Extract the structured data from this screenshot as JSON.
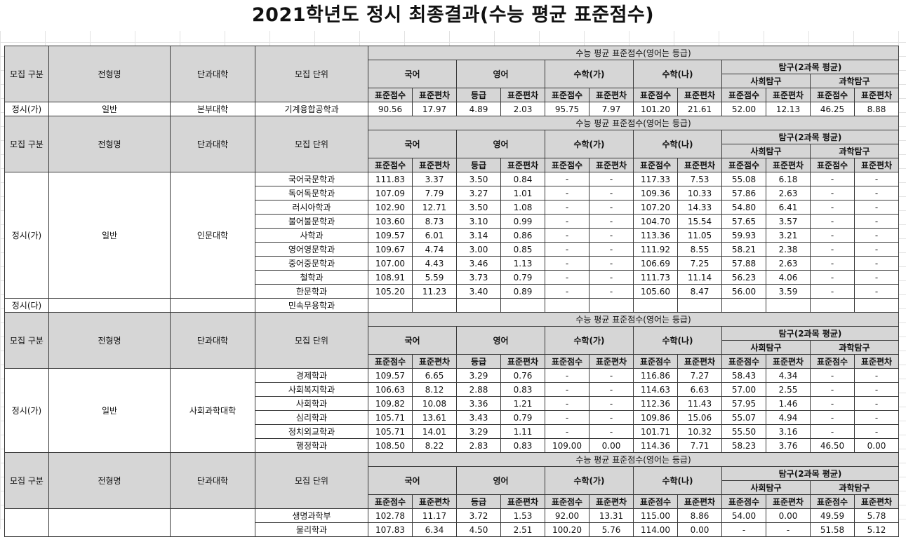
{
  "title": "2021학년도 정시 최종결과(수능 평균 표준점수)",
  "headers": {
    "gubun": "모집 구분",
    "jeonhyeong": "전형명",
    "college": "단과대학",
    "unit": "모집 단위",
    "top": "수능 평균 표준점수(영어는 등급)",
    "kor": "국어",
    "eng": "영어",
    "mathA": "수학(가)",
    "mathB": "수학(나)",
    "tamgu": "탐구(2과목 평균)",
    "social": "사회탐구",
    "science": "과학탐구",
    "std": "표준점수",
    "dev": "표준편차",
    "grade": "등급"
  },
  "sections": [
    {
      "groups": [
        {
          "gubun": "정시(가)",
          "jeonhyeong": "일반",
          "college": "본부대학",
          "rows": [
            {
              "unit": "기계융합공학과",
              "v": [
                "90.56",
                "17.97",
                "4.89",
                "2.03",
                "95.75",
                "7.97",
                "101.20",
                "21.61",
                "52.00",
                "12.13",
                "46.25",
                "8.88"
              ]
            }
          ]
        }
      ]
    },
    {
      "groups": [
        {
          "gubun": "정시(가)",
          "jeonhyeong": "일반",
          "college": "인문대학",
          "rows": [
            {
              "unit": "국어국문학과",
              "v": [
                "111.83",
                "3.37",
                "3.50",
                "0.84",
                "-",
                "-",
                "117.33",
                "7.53",
                "55.08",
                "6.18",
                "-",
                "-"
              ]
            },
            {
              "unit": "독어독문학과",
              "v": [
                "107.09",
                "7.79",
                "3.27",
                "1.01",
                "-",
                "-",
                "109.36",
                "10.33",
                "57.86",
                "2.63",
                "-",
                "-"
              ]
            },
            {
              "unit": "러시아학과",
              "v": [
                "102.90",
                "12.71",
                "3.50",
                "1.08",
                "-",
                "-",
                "107.20",
                "14.33",
                "54.80",
                "6.41",
                "-",
                "-"
              ]
            },
            {
              "unit": "불어불문학과",
              "v": [
                "103.60",
                "8.73",
                "3.10",
                "0.99",
                "-",
                "-",
                "104.70",
                "15.54",
                "57.65",
                "3.57",
                "-",
                "-"
              ]
            },
            {
              "unit": "사학과",
              "v": [
                "109.57",
                "6.01",
                "3.14",
                "0.86",
                "-",
                "-",
                "113.36",
                "11.05",
                "59.93",
                "3.21",
                "-",
                "-"
              ]
            },
            {
              "unit": "영어영문학과",
              "v": [
                "109.67",
                "4.74",
                "3.00",
                "0.85",
                "-",
                "-",
                "111.92",
                "8.55",
                "58.21",
                "2.38",
                "-",
                "-"
              ]
            },
            {
              "unit": "중어중문학과",
              "v": [
                "107.00",
                "4.43",
                "3.46",
                "1.13",
                "-",
                "-",
                "106.69",
                "7.25",
                "57.88",
                "2.63",
                "-",
                "-"
              ]
            },
            {
              "unit": "철학과",
              "v": [
                "108.91",
                "5.59",
                "3.73",
                "0.79",
                "-",
                "-",
                "111.73",
                "11.14",
                "56.23",
                "4.06",
                "-",
                "-"
              ]
            },
            {
              "unit": "한문학과",
              "v": [
                "105.20",
                "11.23",
                "3.40",
                "0.89",
                "-",
                "-",
                "105.60",
                "8.47",
                "56.00",
                "3.59",
                "-",
                "-"
              ]
            }
          ]
        },
        {
          "gubun": "정시(다)",
          "jeonhyeong": "",
          "college": "",
          "rows": [
            {
              "unit": "민속무용학과",
              "v": [
                "",
                "",
                "",
                "",
                "",
                "",
                "",
                "",
                "",
                "",
                "",
                ""
              ]
            }
          ]
        }
      ]
    },
    {
      "groups": [
        {
          "gubun": "정시(가)",
          "jeonhyeong": "일반",
          "college": "사회과학대학",
          "rows": [
            {
              "unit": "경제학과",
              "v": [
                "109.57",
                "6.65",
                "3.29",
                "0.76",
                "-",
                "-",
                "116.86",
                "7.27",
                "58.43",
                "4.34",
                "-",
                "-"
              ]
            },
            {
              "unit": "사회복지학과",
              "v": [
                "106.63",
                "8.12",
                "2.88",
                "0.83",
                "-",
                "-",
                "114.63",
                "6.63",
                "57.00",
                "2.55",
                "-",
                "-"
              ]
            },
            {
              "unit": "사회학과",
              "v": [
                "109.82",
                "10.08",
                "3.36",
                "1.21",
                "-",
                "-",
                "112.36",
                "11.43",
                "57.95",
                "1.46",
                "-",
                "-"
              ]
            },
            {
              "unit": "심리학과",
              "v": [
                "105.71",
                "13.61",
                "3.43",
                "0.79",
                "-",
                "-",
                "109.86",
                "15.06",
                "55.07",
                "4.94",
                "-",
                "-"
              ]
            },
            {
              "unit": "정치외교학과",
              "v": [
                "105.71",
                "14.01",
                "3.29",
                "1.11",
                "-",
                "-",
                "101.71",
                "10.32",
                "55.50",
                "3.16",
                "-",
                "-"
              ]
            },
            {
              "unit": "행정학과",
              "v": [
                "108.50",
                "8.22",
                "2.83",
                "0.83",
                "109.00",
                "0.00",
                "114.36",
                "7.71",
                "58.23",
                "3.76",
                "46.50",
                "0.00"
              ]
            }
          ]
        }
      ]
    },
    {
      "groups": [
        {
          "gubun": "",
          "jeonhyeong": "",
          "college": "",
          "rows": [
            {
              "unit": "생명과학부",
              "v": [
                "102.78",
                "11.17",
                "3.72",
                "1.53",
                "92.00",
                "13.31",
                "115.00",
                "8.86",
                "54.00",
                "0.00",
                "49.59",
                "5.78"
              ]
            },
            {
              "unit": "물리학과",
              "v": [
                "107.83",
                "6.34",
                "4.50",
                "2.51",
                "100.20",
                "5.76",
                "114.00",
                "0.00",
                "-",
                "-",
                "51.58",
                "5.12"
              ]
            }
          ]
        }
      ]
    }
  ]
}
